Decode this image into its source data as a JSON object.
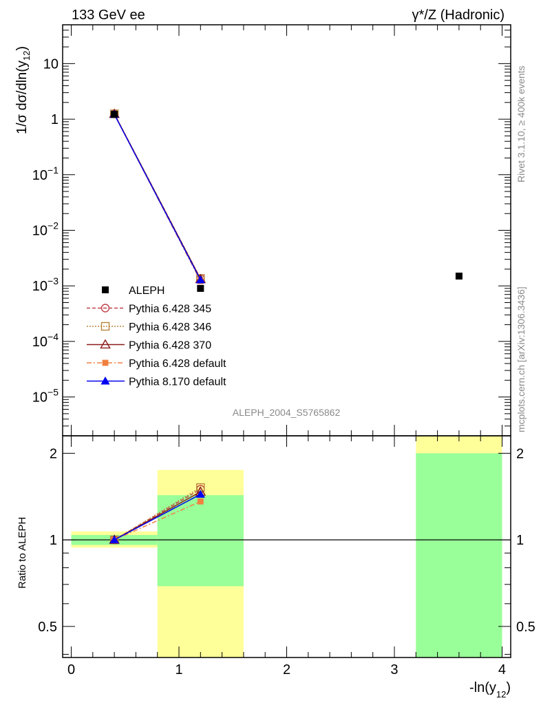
{
  "header": {
    "left": "133 GeV ee",
    "right": "γ*/Z (Hadronic)"
  },
  "side": {
    "rivet": "Rivet 3.1.10, ≥ 400k events",
    "mcplots": "mcplots.cern.ch [arXiv:1306.3436]"
  },
  "analysis_id": "ALEPH_2004_S5765862",
  "chart_data": [
    {
      "type": "scatter",
      "name": "main",
      "ylabel": "1/σ dσ/dln(y12)",
      "yscale": "log",
      "ylim": [
        2e-06,
        50
      ],
      "xlim": [
        -0.08,
        4.08
      ],
      "y_ticks": [
        {
          "value": 10,
          "label": "10"
        },
        {
          "value": 1,
          "label": "1"
        },
        {
          "value": 0.1,
          "label": "10−1"
        },
        {
          "value": 0.01,
          "label": "10−2"
        },
        {
          "value": 0.001,
          "label": "10−3"
        },
        {
          "value": 0.0001,
          "label": "10−4"
        },
        {
          "value": 1e-05,
          "label": "10−5"
        }
      ],
      "legend_position": "left",
      "data": {
        "name": "ALEPH",
        "color": "#000000",
        "points": [
          {
            "x": 0.4,
            "y": 1.22
          },
          {
            "x": 1.2,
            "y": 0.0009
          },
          {
            "x": 3.6,
            "y": 0.0015
          }
        ]
      },
      "series": [
        {
          "name": "Pythia 6.428 345",
          "color": "#c0404a",
          "dash": "5,3",
          "marker": "circle-open",
          "points": [
            {
              "x": 0.4,
              "y": 1.25
            },
            {
              "x": 1.2,
              "y": 0.00135
            }
          ]
        },
        {
          "name": "Pythia 6.428 346",
          "color": "#b8863b",
          "dash": "2,2",
          "marker": "square-open",
          "points": [
            {
              "x": 0.4,
              "y": 1.25
            },
            {
              "x": 1.2,
              "y": 0.00136
            }
          ]
        },
        {
          "name": "Pythia 6.428 370",
          "color": "#8b1a1a",
          "dash": "",
          "marker": "triangle-open",
          "points": [
            {
              "x": 0.4,
              "y": 1.24
            },
            {
              "x": 1.2,
              "y": 0.00132
            }
          ]
        },
        {
          "name": "Pythia 6.428 default",
          "color": "#f08040",
          "dash": "7,3,2,3",
          "marker": "square-filled",
          "points": [
            {
              "x": 0.4,
              "y": 1.23
            },
            {
              "x": 1.2,
              "y": 0.00122
            }
          ]
        },
        {
          "name": "Pythia 8.170 default",
          "color": "#0000ee",
          "dash": "",
          "marker": "triangle-filled",
          "points": [
            {
              "x": 0.4,
              "y": 1.22
            },
            {
              "x": 1.2,
              "y": 0.00128
            }
          ]
        }
      ]
    },
    {
      "type": "scatter",
      "name": "ratio",
      "xlabel": "-ln(y12)",
      "ylabel": "Ratio to ALEPH",
      "yscale": "log",
      "ylim": [
        0.39,
        2.3
      ],
      "xlim": [
        -0.08,
        4.08
      ],
      "x_ticks": [
        0,
        1,
        2,
        3,
        4
      ],
      "y_ticks": [
        {
          "value": 0.5,
          "label": "0.5"
        },
        {
          "value": 1,
          "label": "1"
        },
        {
          "value": 2,
          "label": "2"
        }
      ],
      "uncertainty_bands": [
        {
          "x": [
            0,
            0.8
          ],
          "yellow": [
            0.94,
            1.07
          ],
          "green": [
            0.96,
            1.04
          ]
        },
        {
          "x": [
            0.8,
            1.6
          ],
          "yellow": [
            0.39,
            1.75
          ],
          "green": [
            0.69,
            1.43
          ]
        },
        {
          "x": [
            3.2,
            4.0
          ],
          "yellow": [
            0.39,
            2.3
          ],
          "green": [
            0.39,
            2.0
          ]
        }
      ],
      "series": [
        {
          "name": "Pythia 6.428 345",
          "points": [
            {
              "x": 0.4,
              "y": 1.0
            },
            {
              "x": 1.2,
              "y": 1.5
            }
          ]
        },
        {
          "name": "Pythia 6.428 346",
          "points": [
            {
              "x": 0.4,
              "y": 1.0
            },
            {
              "x": 1.2,
              "y": 1.52
            }
          ]
        },
        {
          "name": "Pythia 6.428 370",
          "points": [
            {
              "x": 0.4,
              "y": 1.0
            },
            {
              "x": 1.2,
              "y": 1.47
            }
          ]
        },
        {
          "name": "Pythia 6.428 default",
          "points": [
            {
              "x": 0.4,
              "y": 1.0
            },
            {
              "x": 1.2,
              "y": 1.36
            }
          ]
        },
        {
          "name": "Pythia 8.170 default",
          "points": [
            {
              "x": 0.4,
              "y": 1.0
            },
            {
              "x": 1.2,
              "y": 1.44
            }
          ]
        }
      ]
    }
  ]
}
